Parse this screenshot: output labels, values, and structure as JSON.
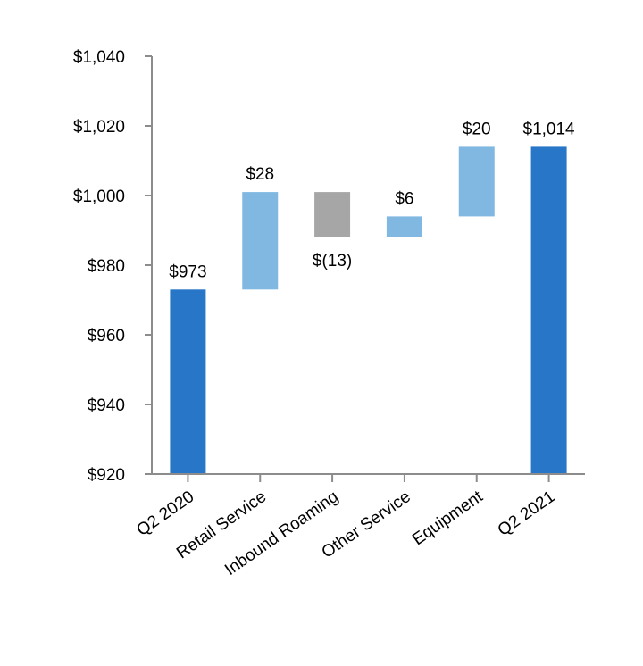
{
  "chart_data": {
    "type": "bar",
    "subtype": "waterfall",
    "title": "",
    "xlabel": "",
    "ylabel": "",
    "ylim": [
      920,
      1040
    ],
    "yticks": [
      920,
      940,
      960,
      980,
      1000,
      1020,
      1040
    ],
    "ytick_labels": [
      "$920",
      "$940",
      "$960",
      "$980",
      "$1,000",
      "$1,020",
      "$1,040"
    ],
    "grid": false,
    "legend": "none",
    "categories": [
      "Q2 2020",
      "Retail Service",
      "Inbound Roaming",
      "Other Service",
      "Equipment",
      "Q2 2021"
    ],
    "bars": [
      {
        "category": "Q2 2020",
        "kind": "total",
        "start": 920,
        "end": 973,
        "label": "$973",
        "color": "#2776c8"
      },
      {
        "category": "Retail Service",
        "kind": "increase",
        "start": 973,
        "end": 1001,
        "label": "$28",
        "color": "#80b8e2"
      },
      {
        "category": "Inbound Roaming",
        "kind": "decrease",
        "start": 1001,
        "end": 988,
        "label": "$(13)",
        "color": "#a6a6a6"
      },
      {
        "category": "Other Service",
        "kind": "increase",
        "start": 988,
        "end": 994,
        "label": "$6",
        "color": "#80b8e2"
      },
      {
        "category": "Equipment",
        "kind": "increase",
        "start": 994,
        "end": 1014,
        "label": "$20",
        "color": "#80b8e2"
      },
      {
        "category": "Q2 2021",
        "kind": "total",
        "start": 920,
        "end": 1014,
        "label": "$1,014",
        "color": "#2776c8"
      }
    ]
  }
}
